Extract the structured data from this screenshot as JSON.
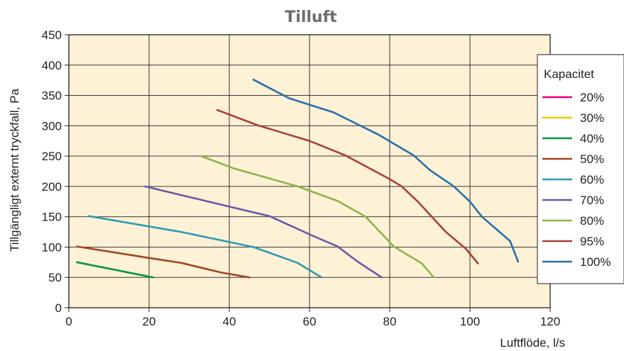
{
  "chart_data": {
    "type": "line",
    "title": "Tilluft",
    "xlabel": "Luftflöde, l/s",
    "ylabel": "Tillgängligt externt tryckfall, Pa",
    "xlim": [
      0,
      120
    ],
    "ylim": [
      0,
      450
    ],
    "xticks": [
      "0",
      "20",
      "40",
      "60",
      "80",
      "100",
      "120"
    ],
    "yticks": [
      "0",
      "50",
      "100",
      "150",
      "200",
      "250",
      "300",
      "350",
      "400",
      "450"
    ],
    "grid": true,
    "background": "#fdf1d6",
    "legend": {
      "title": "Kapacitet",
      "placement": "right"
    },
    "series": [
      {
        "name": "20%",
        "color": "#e6007e",
        "points": []
      },
      {
        "name": "30%",
        "color": "#f2c500",
        "points": []
      },
      {
        "name": "40%",
        "color": "#00953f",
        "points": [
          [
            2,
            75
          ],
          [
            21,
            50
          ]
        ]
      },
      {
        "name": "50%",
        "color": "#a1461f",
        "points": [
          [
            2,
            101
          ],
          [
            20,
            82
          ],
          [
            28,
            74
          ],
          [
            38,
            58
          ],
          [
            45,
            50
          ]
        ]
      },
      {
        "name": "60%",
        "color": "#2f99b0",
        "points": [
          [
            5,
            151
          ],
          [
            28,
            125
          ],
          [
            46,
            100
          ],
          [
            57,
            74
          ],
          [
            63,
            50
          ]
        ]
      },
      {
        "name": "70%",
        "color": "#6c58a4",
        "points": [
          [
            19,
            200
          ],
          [
            38,
            170
          ],
          [
            50,
            151
          ],
          [
            61,
            118
          ],
          [
            67,
            101
          ],
          [
            72,
            76
          ],
          [
            78,
            50
          ]
        ]
      },
      {
        "name": "80%",
        "color": "#8db54b",
        "points": [
          [
            33,
            250
          ],
          [
            41,
            230
          ],
          [
            57,
            200
          ],
          [
            67,
            176
          ],
          [
            74,
            150
          ],
          [
            81,
            101
          ],
          [
            88,
            73
          ],
          [
            91,
            50
          ]
        ]
      },
      {
        "name": "95%",
        "color": "#a7403c",
        "points": [
          [
            37,
            326
          ],
          [
            47,
            301
          ],
          [
            60,
            275
          ],
          [
            69,
            251
          ],
          [
            80,
            212
          ],
          [
            83,
            200
          ],
          [
            87,
            175
          ],
          [
            94,
            125
          ],
          [
            99,
            97
          ],
          [
            102,
            73
          ]
        ]
      },
      {
        "name": "100%",
        "color": "#2a6faa",
        "points": [
          [
            46,
            376
          ],
          [
            55,
            345
          ],
          [
            66,
            322
          ],
          [
            77,
            286
          ],
          [
            86,
            251
          ],
          [
            90,
            227
          ],
          [
            96,
            200
          ],
          [
            100,
            175
          ],
          [
            103,
            150
          ],
          [
            110,
            110
          ],
          [
            112,
            76
          ]
        ]
      }
    ]
  }
}
